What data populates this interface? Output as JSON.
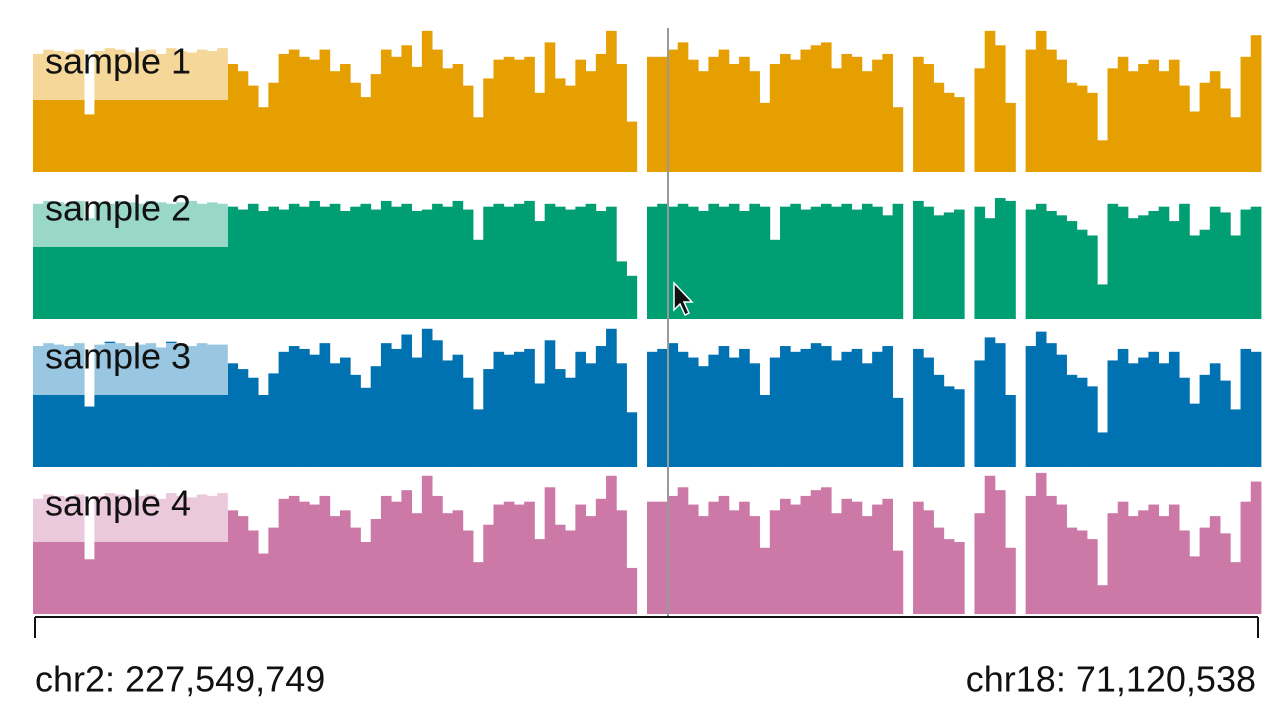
{
  "chart_data": {
    "type": "bar",
    "ylim": [
      0,
      100
    ],
    "annotations": [
      "chr2: 227,549,749",
      "chr18: 71,120,538"
    ],
    "series": [
      {
        "name": "sample 1",
        "color": "#e69f00",
        "values": [
          82,
          85,
          84,
          83,
          85,
          40,
          84,
          86,
          85,
          83,
          84,
          85,
          82,
          86,
          84,
          83,
          85,
          84,
          86,
          75,
          70,
          60,
          45,
          62,
          82,
          85,
          80,
          78,
          85,
          70,
          75,
          62,
          52,
          68,
          85,
          80,
          88,
          73,
          98,
          85,
          72,
          75,
          60,
          38,
          65,
          78,
          80,
          78,
          80,
          55,
          90,
          65,
          60,
          78,
          70,
          82,
          98,
          75,
          35,
          0,
          80,
          80,
          85,
          90,
          78,
          70,
          80,
          85,
          75,
          80,
          70,
          48,
          75,
          82,
          78,
          85,
          88,
          90,
          72,
          82,
          80,
          70,
          78,
          82,
          45,
          0,
          80,
          75,
          62,
          55,
          52,
          0,
          72,
          98,
          88,
          48,
          0,
          85,
          98,
          85,
          78,
          62,
          60,
          55,
          22,
          72,
          80,
          70,
          75,
          78,
          70,
          78,
          60,
          42,
          62,
          70,
          58,
          38,
          80,
          95
        ]
      },
      {
        "name": "sample 2",
        "color": "#009e73",
        "values": [
          80,
          82,
          81,
          80,
          82,
          70,
          81,
          80,
          82,
          81,
          80,
          82,
          81,
          80,
          81,
          82,
          80,
          81,
          80,
          78,
          76,
          80,
          75,
          78,
          76,
          80,
          78,
          82,
          78,
          80,
          75,
          78,
          80,
          76,
          82,
          78,
          80,
          75,
          76,
          80,
          78,
          82,
          76,
          55,
          78,
          80,
          78,
          80,
          82,
          68,
          80,
          78,
          76,
          78,
          80,
          75,
          78,
          40,
          30,
          0,
          78,
          80,
          78,
          80,
          78,
          75,
          80,
          78,
          80,
          75,
          80,
          78,
          55,
          78,
          80,
          76,
          78,
          80,
          78,
          80,
          76,
          80,
          78,
          72,
          80,
          0,
          82,
          78,
          72,
          74,
          76,
          0,
          78,
          70,
          84,
          82,
          0,
          76,
          80,
          75,
          72,
          68,
          62,
          58,
          24,
          80,
          78,
          70,
          72,
          75,
          78,
          68,
          80,
          58,
          62,
          78,
          74,
          58,
          76,
          78
        ]
      },
      {
        "name": "sample 3",
        "color": "#0072b2",
        "values": [
          84,
          86,
          85,
          84,
          86,
          42,
          85,
          87,
          86,
          84,
          85,
          86,
          83,
          87,
          85,
          84,
          86,
          85,
          85,
          72,
          68,
          62,
          50,
          65,
          80,
          84,
          82,
          78,
          86,
          72,
          76,
          64,
          55,
          70,
          86,
          82,
          92,
          76,
          96,
          88,
          74,
          78,
          62,
          40,
          68,
          80,
          78,
          80,
          82,
          58,
          88,
          68,
          62,
          80,
          72,
          84,
          96,
          72,
          38,
          0,
          80,
          82,
          86,
          80,
          76,
          70,
          78,
          84,
          76,
          82,
          72,
          50,
          76,
          84,
          80,
          82,
          86,
          84,
          74,
          80,
          82,
          72,
          80,
          84,
          48,
          0,
          82,
          76,
          64,
          56,
          54,
          0,
          74,
          90,
          86,
          50,
          0,
          84,
          94,
          86,
          78,
          64,
          62,
          56,
          24,
          74,
          82,
          72,
          76,
          80,
          72,
          80,
          62,
          44,
          64,
          72,
          60,
          40,
          82,
          80
        ]
      },
      {
        "name": "sample 4",
        "color": "#cc79a7",
        "values": [
          80,
          83,
          82,
          81,
          83,
          38,
          82,
          84,
          83,
          81,
          82,
          83,
          80,
          84,
          82,
          81,
          83,
          82,
          84,
          72,
          68,
          58,
          42,
          60,
          80,
          82,
          78,
          76,
          82,
          68,
          72,
          60,
          50,
          66,
          82,
          78,
          86,
          70,
          96,
          82,
          70,
          72,
          58,
          36,
          62,
          76,
          78,
          76,
          78,
          52,
          88,
          62,
          58,
          76,
          68,
          80,
          96,
          72,
          32,
          0,
          78,
          78,
          82,
          88,
          76,
          68,
          78,
          82,
          72,
          78,
          68,
          46,
          72,
          80,
          76,
          82,
          86,
          88,
          70,
          80,
          78,
          68,
          76,
          80,
          44,
          0,
          78,
          72,
          60,
          52,
          50,
          0,
          70,
          96,
          86,
          46,
          0,
          82,
          98,
          82,
          76,
          60,
          58,
          52,
          20,
          70,
          78,
          68,
          72,
          76,
          68,
          76,
          58,
          40,
          60,
          68,
          56,
          36,
          78,
          92
        ]
      }
    ]
  }
}
